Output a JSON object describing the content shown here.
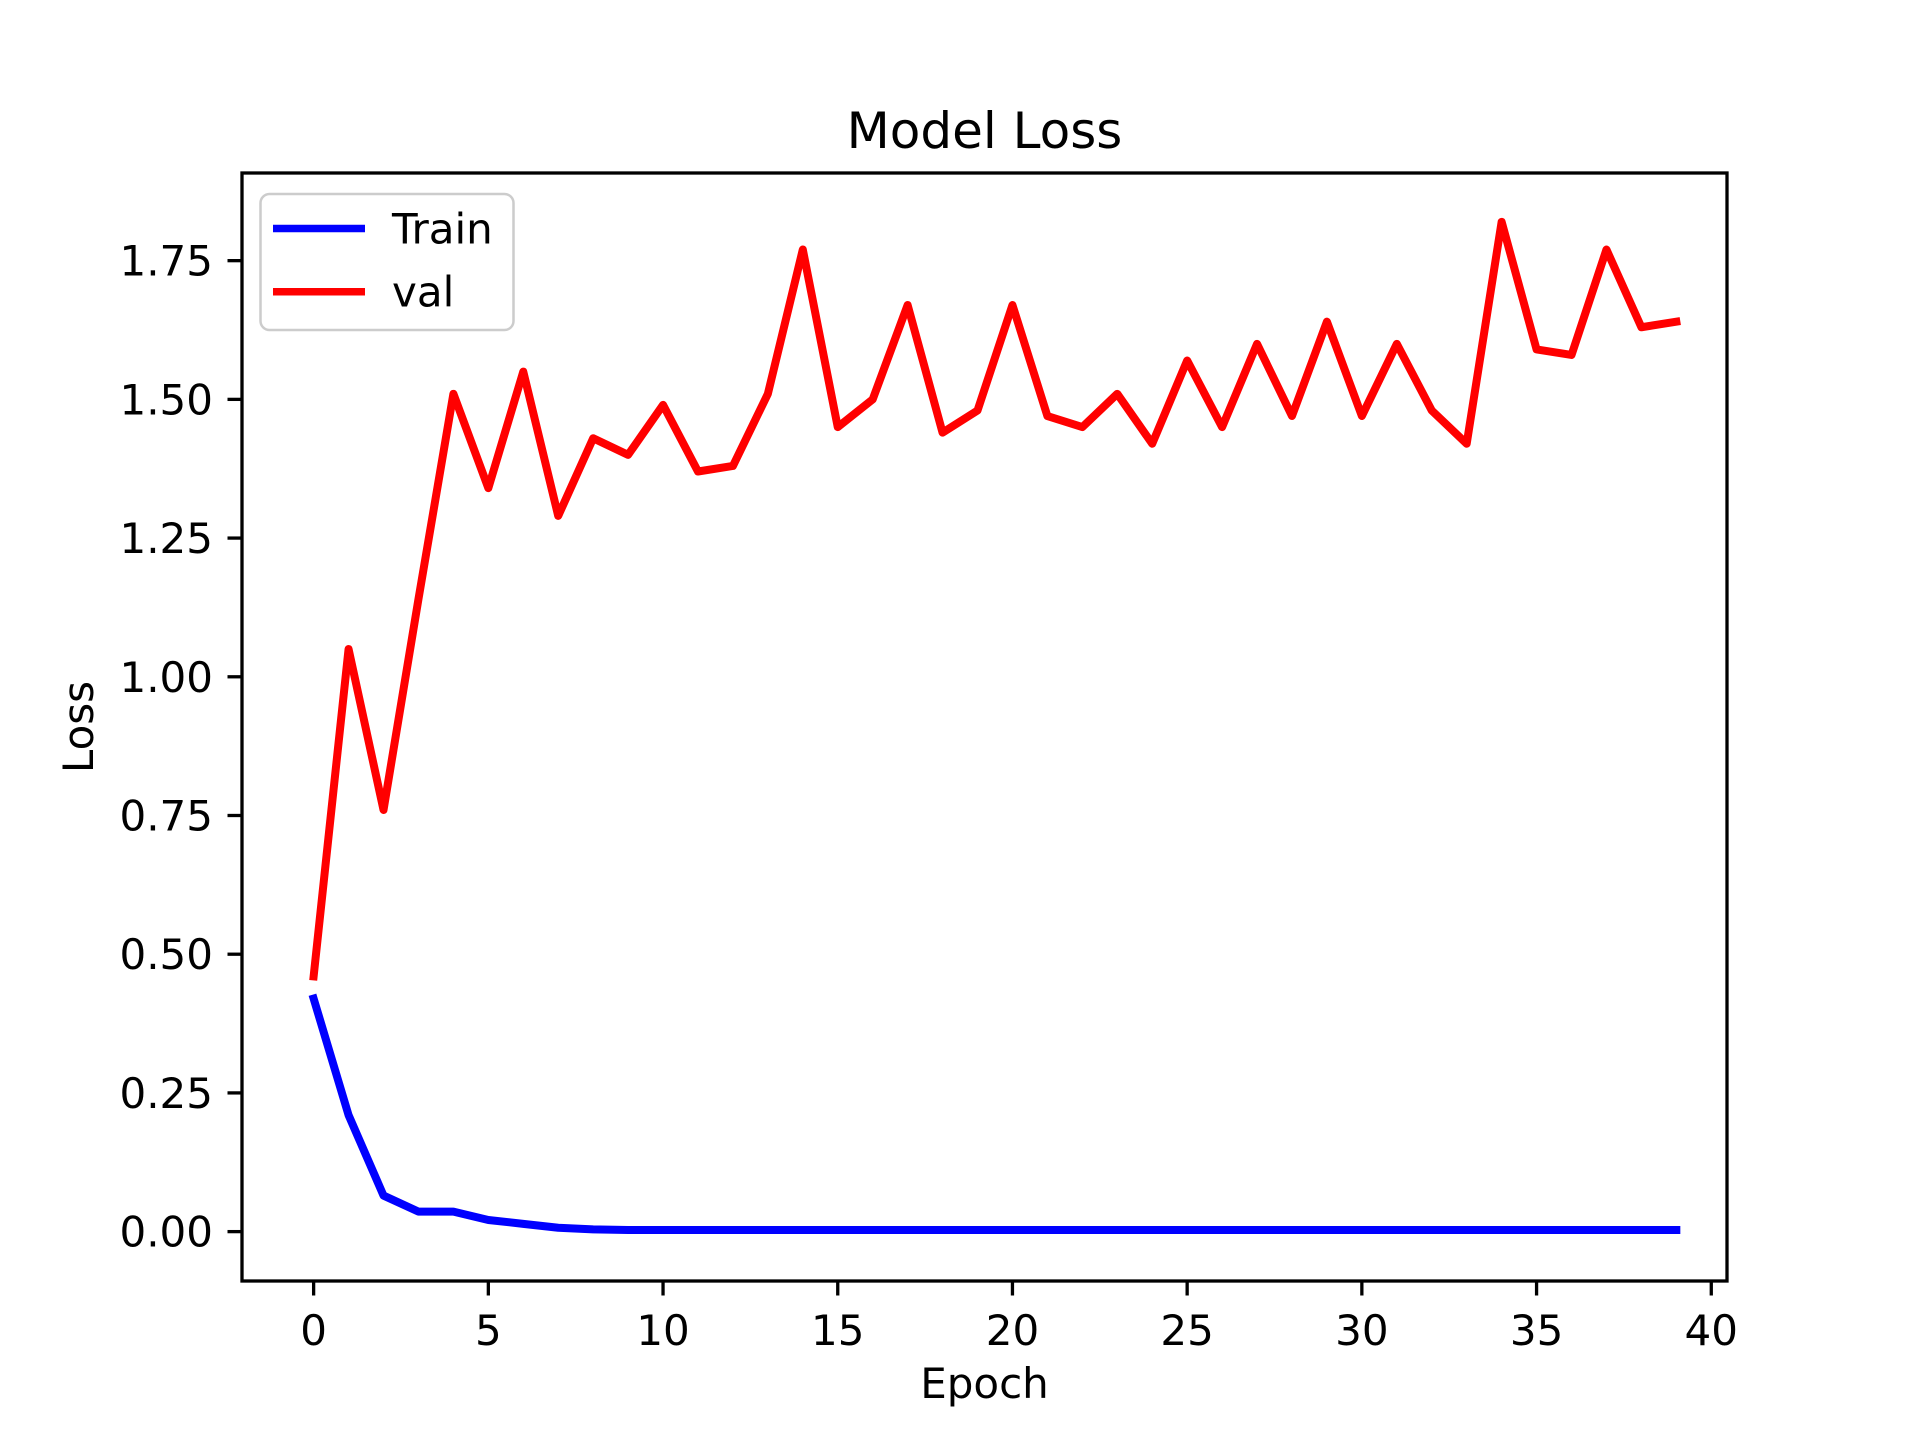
{
  "chart_data": {
    "type": "line",
    "title": "Model Loss",
    "xlabel": "Epoch",
    "ylabel": "Loss",
    "x": [
      0,
      1,
      2,
      3,
      4,
      5,
      6,
      7,
      8,
      9,
      10,
      11,
      12,
      13,
      14,
      15,
      16,
      17,
      18,
      19,
      20,
      21,
      22,
      23,
      24,
      25,
      26,
      27,
      28,
      29,
      30,
      31,
      32,
      33,
      34,
      35,
      36,
      37,
      38,
      39
    ],
    "series": [
      {
        "name": "Train",
        "color": "#0000ff",
        "values": [
          0.42,
          0.21,
          0.065,
          0.036,
          0.036,
          0.021,
          0.014,
          0.007,
          0.004,
          0.003,
          0.003,
          0.003,
          0.003,
          0.003,
          0.003,
          0.003,
          0.003,
          0.003,
          0.003,
          0.003,
          0.003,
          0.003,
          0.003,
          0.003,
          0.003,
          0.003,
          0.003,
          0.003,
          0.003,
          0.003,
          0.003,
          0.003,
          0.003,
          0.003,
          0.003,
          0.003,
          0.003,
          0.003,
          0.003,
          0.003
        ]
      },
      {
        "name": "val",
        "color": "#ff0000",
        "values": [
          0.46,
          1.05,
          0.76,
          1.14,
          1.51,
          1.34,
          1.55,
          1.29,
          1.43,
          1.4,
          1.49,
          1.37,
          1.38,
          1.51,
          1.77,
          1.45,
          1.5,
          1.67,
          1.44,
          1.48,
          1.67,
          1.47,
          1.45,
          1.51,
          1.42,
          1.57,
          1.45,
          1.6,
          1.47,
          1.64,
          1.47,
          1.6,
          1.48,
          1.42,
          1.82,
          1.59,
          1.58,
          1.77,
          1.63,
          1.64
        ]
      }
    ],
    "xlim": [
      -2.05,
      40.45
    ],
    "ylim": [
      -0.089,
      1.908
    ],
    "x_ticks": {
      "values": [
        0,
        5,
        10,
        15,
        20,
        25,
        30,
        35,
        40
      ],
      "labels": [
        "0",
        "5",
        "10",
        "15",
        "20",
        "25",
        "30",
        "35",
        "40"
      ]
    },
    "y_ticks": {
      "values": [
        0.0,
        0.25,
        0.5,
        0.75,
        1.0,
        1.25,
        1.5,
        1.75
      ],
      "labels": [
        "0.00",
        "0.25",
        "0.50",
        "0.75",
        "1.00",
        "1.25",
        "1.50",
        "1.75"
      ]
    },
    "grid": false,
    "legend": {
      "position": "upper left",
      "entries": [
        "Train",
        "val"
      ]
    },
    "axis_color": "#000000",
    "legend_border_color": "#cccccc"
  }
}
